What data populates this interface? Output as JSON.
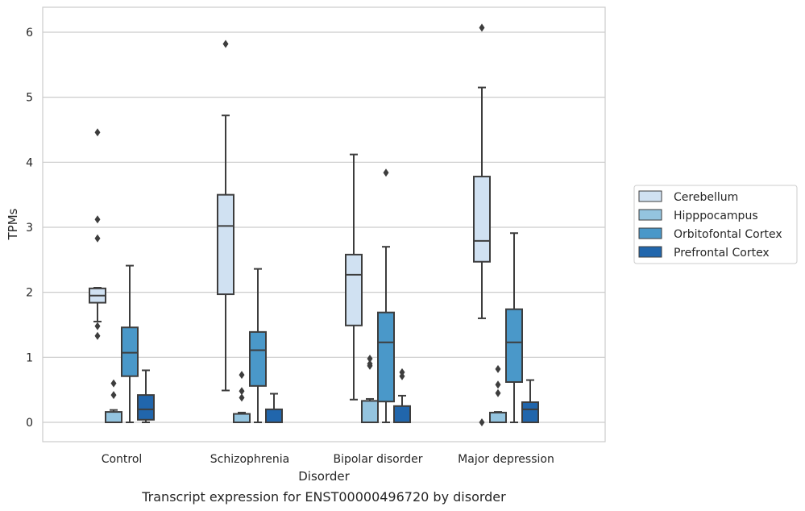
{
  "caption": "Transcript expression for ENST00000496720 by disorder",
  "chart_data": {
    "type": "box",
    "title": "",
    "xlabel": "Disorder",
    "ylabel": "TPMs",
    "ylim": [
      -0.3,
      6.4
    ],
    "yticks": [
      0,
      1,
      2,
      3,
      4,
      5,
      6
    ],
    "grid": "horizontal",
    "legend_position": "right",
    "categories": [
      "Control",
      "Schizophrenia",
      "Bipolar disorder",
      "Major depression"
    ],
    "series": [
      {
        "name": "Cerebellum",
        "color": "#d0e1f2",
        "boxes": [
          {
            "whisker_low": 1.55,
            "q1": 1.84,
            "median": 1.95,
            "q3": 2.06,
            "whisker_high": 2.07,
            "outliers": [
              1.48,
              1.33,
              2.83,
              3.12,
              4.46
            ]
          },
          {
            "whisker_low": 0.49,
            "q1": 1.97,
            "median": 3.02,
            "q3": 3.5,
            "whisker_high": 4.72,
            "outliers": [
              5.82
            ]
          },
          {
            "whisker_low": 0.35,
            "q1": 1.49,
            "median": 2.27,
            "q3": 2.58,
            "whisker_high": 4.12,
            "outliers": []
          },
          {
            "whisker_low": 1.6,
            "q1": 2.47,
            "median": 2.79,
            "q3": 3.78,
            "whisker_high": 5.15,
            "outliers": [
              6.07,
              0.0
            ]
          }
        ]
      },
      {
        "name": "Hipppocampus",
        "color": "#94c4df",
        "boxes": [
          {
            "whisker_low": 0.0,
            "q1": 0.0,
            "median": 0.0,
            "q3": 0.16,
            "whisker_high": 0.19,
            "outliers": [
              0.42,
              0.6
            ]
          },
          {
            "whisker_low": 0.0,
            "q1": 0.0,
            "median": 0.0,
            "q3": 0.13,
            "whisker_high": 0.15,
            "outliers": [
              0.38,
              0.48,
              0.73
            ]
          },
          {
            "whisker_low": 0.0,
            "q1": 0.0,
            "median": 0.0,
            "q3": 0.33,
            "whisker_high": 0.36,
            "outliers": [
              0.87,
              0.9,
              0.98
            ]
          },
          {
            "whisker_low": 0.0,
            "q1": 0.0,
            "median": 0.0,
            "q3": 0.15,
            "whisker_high": 0.16,
            "outliers": [
              0.45,
              0.58,
              0.82
            ]
          }
        ]
      },
      {
        "name": "Orbitofontal Cortex",
        "color": "#4a98c9",
        "boxes": [
          {
            "whisker_low": 0.0,
            "q1": 0.71,
            "median": 1.07,
            "q3": 1.46,
            "whisker_high": 2.41,
            "outliers": []
          },
          {
            "whisker_low": 0.0,
            "q1": 0.56,
            "median": 1.11,
            "q3": 1.39,
            "whisker_high": 2.36,
            "outliers": []
          },
          {
            "whisker_low": 0.0,
            "q1": 0.32,
            "median": 1.23,
            "q3": 1.69,
            "whisker_high": 2.7,
            "outliers": [
              3.84
            ]
          },
          {
            "whisker_low": 0.0,
            "q1": 0.62,
            "median": 1.23,
            "q3": 1.74,
            "whisker_high": 2.91,
            "outliers": []
          }
        ]
      },
      {
        "name": "Prefrontal Cortex",
        "color": "#2166ac",
        "boxes": [
          {
            "whisker_low": 0.0,
            "q1": 0.04,
            "median": 0.2,
            "q3": 0.42,
            "whisker_high": 0.8,
            "outliers": []
          },
          {
            "whisker_low": 0.0,
            "q1": 0.0,
            "median": 0.0,
            "q3": 0.2,
            "whisker_high": 0.44,
            "outliers": []
          },
          {
            "whisker_low": 0.0,
            "q1": 0.0,
            "median": 0.0,
            "q3": 0.25,
            "whisker_high": 0.41,
            "outliers": [
              0.71,
              0.77
            ]
          },
          {
            "whisker_low": 0.0,
            "q1": 0.0,
            "median": 0.2,
            "q3": 0.31,
            "whisker_high": 0.65,
            "outliers": []
          }
        ]
      }
    ]
  }
}
